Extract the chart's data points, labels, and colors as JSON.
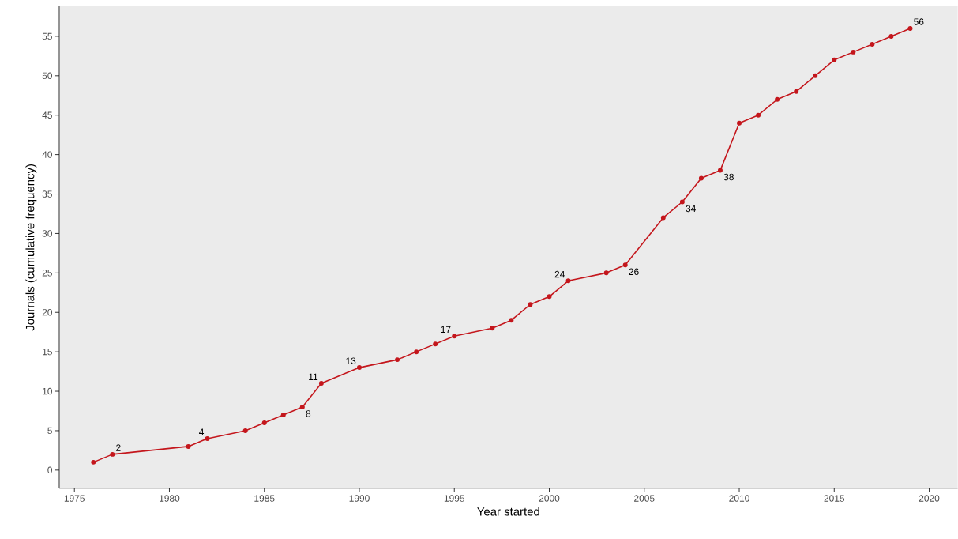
{
  "chart_data": {
    "type": "line",
    "xlabel": "Year started",
    "ylabel": "Journals (cumulative frequency)",
    "x": [
      1976,
      1977,
      1981,
      1982,
      1984,
      1985,
      1986,
      1987,
      1988,
      1990,
      1992,
      1993,
      1994,
      1995,
      1997,
      1998,
      1999,
      2000,
      2001,
      2003,
      2004,
      2006,
      2007,
      2008,
      2009,
      2010,
      2011,
      2012,
      2013,
      2014,
      2015,
      2016,
      2017,
      2018,
      2019
    ],
    "values": [
      1,
      2,
      3,
      4,
      5,
      6,
      7,
      8,
      11,
      13,
      14,
      15,
      16,
      17,
      18,
      19,
      21,
      22,
      24,
      25,
      26,
      32,
      34,
      37,
      38,
      44,
      45,
      47,
      48,
      50,
      52,
      53,
      54,
      55,
      56
    ],
    "value_labels": [
      null,
      "2",
      null,
      "4",
      null,
      null,
      null,
      "8",
      "11",
      "13",
      null,
      null,
      null,
      "17",
      null,
      null,
      null,
      null,
      "24",
      null,
      "26",
      null,
      "34",
      null,
      "38",
      null,
      null,
      null,
      null,
      null,
      null,
      null,
      null,
      null,
      "56"
    ],
    "color": "#c4161c",
    "marker": "circle",
    "line_style": "solid",
    "grid": false,
    "xlim": [
      1974.2,
      2021.5
    ],
    "ylim": [
      -2.3,
      58.8
    ],
    "xticks": [
      1975,
      1980,
      1985,
      1990,
      1995,
      2000,
      2005,
      2010,
      2015,
      2020
    ],
    "yticks": [
      0,
      5,
      10,
      15,
      20,
      25,
      30,
      35,
      40,
      45,
      50,
      55
    ]
  }
}
